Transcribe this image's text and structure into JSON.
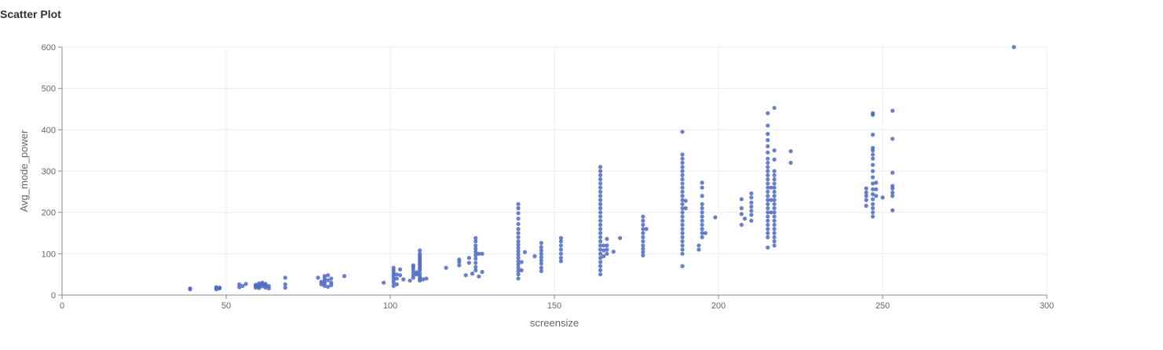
{
  "page": {
    "title": "Scatter Plot"
  },
  "colors": {
    "point": "#4c6ac3",
    "grid": "#ececec",
    "axis": "#888888"
  },
  "chart_data": {
    "type": "scatter",
    "title": "Scatter Plot",
    "xlabel": "screensize",
    "ylabel": "Avg_mode_power",
    "xlim": [
      0,
      300
    ],
    "ylim": [
      0,
      600
    ],
    "xticks": [
      0,
      50,
      100,
      150,
      200,
      250,
      300
    ],
    "yticks": [
      0,
      100,
      200,
      300,
      400,
      500,
      600
    ],
    "grid": true,
    "points": [
      [
        39,
        14
      ],
      [
        39,
        16
      ],
      [
        47,
        14
      ],
      [
        47,
        17
      ],
      [
        47,
        19
      ],
      [
        48,
        16
      ],
      [
        48,
        18
      ],
      [
        54,
        19
      ],
      [
        54,
        26
      ],
      [
        55,
        22
      ],
      [
        56,
        27
      ],
      [
        59,
        18
      ],
      [
        59,
        22
      ],
      [
        59,
        25
      ],
      [
        60,
        17
      ],
      [
        60,
        20
      ],
      [
        60,
        24
      ],
      [
        60,
        28
      ],
      [
        61,
        21
      ],
      [
        61,
        26
      ],
      [
        61,
        30
      ],
      [
        62,
        18
      ],
      [
        62,
        24
      ],
      [
        62,
        27
      ],
      [
        63,
        16
      ],
      [
        63,
        22
      ],
      [
        68,
        18
      ],
      [
        68,
        26
      ],
      [
        68,
        42
      ],
      [
        78,
        42
      ],
      [
        79,
        26
      ],
      [
        79,
        32
      ],
      [
        80,
        22
      ],
      [
        80,
        28
      ],
      [
        80,
        34
      ],
      [
        80,
        40
      ],
      [
        80,
        46
      ],
      [
        81,
        20
      ],
      [
        81,
        36
      ],
      [
        81,
        48
      ],
      [
        82,
        24
      ],
      [
        82,
        30
      ],
      [
        82,
        40
      ],
      [
        86,
        46
      ],
      [
        98,
        30
      ],
      [
        101,
        22
      ],
      [
        101,
        30
      ],
      [
        101,
        36
      ],
      [
        101,
        42
      ],
      [
        101,
        48
      ],
      [
        101,
        54
      ],
      [
        101,
        60
      ],
      [
        101,
        66
      ],
      [
        102,
        26
      ],
      [
        102,
        40
      ],
      [
        102,
        50
      ],
      [
        103,
        62
      ],
      [
        103,
        48
      ],
      [
        104,
        38
      ],
      [
        106,
        35
      ],
      [
        107,
        42
      ],
      [
        107,
        48
      ],
      [
        107,
        55
      ],
      [
        107,
        62
      ],
      [
        107,
        68
      ],
      [
        107,
        72
      ],
      [
        108,
        50
      ],
      [
        108,
        55
      ],
      [
        109,
        35
      ],
      [
        109,
        40
      ],
      [
        109,
        45
      ],
      [
        109,
        52
      ],
      [
        109,
        60
      ],
      [
        109,
        65
      ],
      [
        109,
        70
      ],
      [
        109,
        75
      ],
      [
        109,
        80
      ],
      [
        109,
        85
      ],
      [
        109,
        90
      ],
      [
        109,
        95
      ],
      [
        109,
        100
      ],
      [
        109,
        108
      ],
      [
        110,
        38
      ],
      [
        111,
        40
      ],
      [
        117,
        66
      ],
      [
        121,
        72
      ],
      [
        121,
        80
      ],
      [
        121,
        86
      ],
      [
        123,
        48
      ],
      [
        124,
        78
      ],
      [
        124,
        90
      ],
      [
        125,
        52
      ],
      [
        126,
        60
      ],
      [
        126,
        68
      ],
      [
        126,
        78
      ],
      [
        126,
        88
      ],
      [
        126,
        96
      ],
      [
        126,
        104
      ],
      [
        126,
        112
      ],
      [
        126,
        120
      ],
      [
        126,
        130
      ],
      [
        126,
        138
      ],
      [
        127,
        45
      ],
      [
        127,
        100
      ],
      [
        128,
        56
      ],
      [
        128,
        100
      ],
      [
        139,
        40
      ],
      [
        139,
        50
      ],
      [
        139,
        58
      ],
      [
        139,
        66
      ],
      [
        139,
        74
      ],
      [
        139,
        82
      ],
      [
        139,
        90
      ],
      [
        139,
        98
      ],
      [
        139,
        106
      ],
      [
        139,
        114
      ],
      [
        139,
        122
      ],
      [
        139,
        130
      ],
      [
        139,
        140
      ],
      [
        139,
        150
      ],
      [
        139,
        160
      ],
      [
        139,
        172
      ],
      [
        139,
        185
      ],
      [
        139,
        198
      ],
      [
        139,
        210
      ],
      [
        139,
        220
      ],
      [
        140,
        60
      ],
      [
        140,
        80
      ],
      [
        141,
        104
      ],
      [
        144,
        94
      ],
      [
        146,
        58
      ],
      [
        146,
        66
      ],
      [
        146,
        76
      ],
      [
        146,
        84
      ],
      [
        146,
        92
      ],
      [
        146,
        100
      ],
      [
        146,
        108
      ],
      [
        146,
        116
      ],
      [
        146,
        126
      ],
      [
        152,
        82
      ],
      [
        152,
        90
      ],
      [
        152,
        100
      ],
      [
        152,
        110
      ],
      [
        152,
        120
      ],
      [
        152,
        130
      ],
      [
        152,
        138
      ],
      [
        164,
        50
      ],
      [
        164,
        60
      ],
      [
        164,
        70
      ],
      [
        164,
        80
      ],
      [
        164,
        90
      ],
      [
        164,
        100
      ],
      [
        164,
        110
      ],
      [
        164,
        120
      ],
      [
        164,
        130
      ],
      [
        164,
        140
      ],
      [
        164,
        150
      ],
      [
        164,
        160
      ],
      [
        164,
        170
      ],
      [
        164,
        180
      ],
      [
        164,
        190
      ],
      [
        164,
        200
      ],
      [
        164,
        210
      ],
      [
        164,
        220
      ],
      [
        164,
        230
      ],
      [
        164,
        240
      ],
      [
        164,
        250
      ],
      [
        164,
        260
      ],
      [
        164,
        270
      ],
      [
        164,
        280
      ],
      [
        164,
        290
      ],
      [
        164,
        300
      ],
      [
        164,
        310
      ],
      [
        165,
        94
      ],
      [
        165,
        108
      ],
      [
        165,
        120
      ],
      [
        166,
        100
      ],
      [
        166,
        110
      ],
      [
        166,
        120
      ],
      [
        166,
        136
      ],
      [
        168,
        105
      ],
      [
        170,
        138
      ],
      [
        177,
        96
      ],
      [
        177,
        104
      ],
      [
        177,
        112
      ],
      [
        177,
        120
      ],
      [
        177,
        130
      ],
      [
        177,
        140
      ],
      [
        177,
        150
      ],
      [
        177,
        160
      ],
      [
        177,
        170
      ],
      [
        177,
        180
      ],
      [
        177,
        190
      ],
      [
        178,
        160
      ],
      [
        189,
        70
      ],
      [
        189,
        100
      ],
      [
        189,
        110
      ],
      [
        189,
        120
      ],
      [
        189,
        130
      ],
      [
        189,
        140
      ],
      [
        189,
        150
      ],
      [
        189,
        160
      ],
      [
        189,
        170
      ],
      [
        189,
        180
      ],
      [
        189,
        190
      ],
      [
        189,
        200
      ],
      [
        189,
        210
      ],
      [
        189,
        220
      ],
      [
        189,
        230
      ],
      [
        189,
        240
      ],
      [
        189,
        250
      ],
      [
        189,
        260
      ],
      [
        189,
        270
      ],
      [
        189,
        280
      ],
      [
        189,
        290
      ],
      [
        189,
        300
      ],
      [
        189,
        310
      ],
      [
        189,
        320
      ],
      [
        189,
        330
      ],
      [
        189,
        340
      ],
      [
        189,
        395
      ],
      [
        190,
        210
      ],
      [
        190,
        228
      ],
      [
        194,
        110
      ],
      [
        194,
        120
      ],
      [
        195,
        140
      ],
      [
        195,
        150
      ],
      [
        195,
        160
      ],
      [
        195,
        170
      ],
      [
        195,
        180
      ],
      [
        195,
        190
      ],
      [
        195,
        200
      ],
      [
        195,
        210
      ],
      [
        195,
        220
      ],
      [
        195,
        240
      ],
      [
        195,
        260
      ],
      [
        195,
        272
      ],
      [
        196,
        150
      ],
      [
        199,
        188
      ],
      [
        207,
        170
      ],
      [
        207,
        196
      ],
      [
        207,
        210
      ],
      [
        207,
        232
      ],
      [
        208,
        185
      ],
      [
        210,
        180
      ],
      [
        210,
        194
      ],
      [
        210,
        204
      ],
      [
        210,
        214
      ],
      [
        210,
        224
      ],
      [
        210,
        236
      ],
      [
        210,
        246
      ],
      [
        215,
        115
      ],
      [
        215,
        140
      ],
      [
        215,
        150
      ],
      [
        215,
        160
      ],
      [
        215,
        170
      ],
      [
        215,
        180
      ],
      [
        215,
        190
      ],
      [
        215,
        200
      ],
      [
        215,
        210
      ],
      [
        215,
        220
      ],
      [
        215,
        230
      ],
      [
        215,
        240
      ],
      [
        215,
        250
      ],
      [
        215,
        260
      ],
      [
        215,
        270
      ],
      [
        215,
        280
      ],
      [
        215,
        290
      ],
      [
        215,
        300
      ],
      [
        215,
        310
      ],
      [
        215,
        320
      ],
      [
        215,
        330
      ],
      [
        215,
        345
      ],
      [
        215,
        360
      ],
      [
        215,
        375
      ],
      [
        215,
        390
      ],
      [
        215,
        410
      ],
      [
        215,
        440
      ],
      [
        216,
        200
      ],
      [
        216,
        230
      ],
      [
        216,
        260
      ],
      [
        217,
        120
      ],
      [
        217,
        130
      ],
      [
        217,
        140
      ],
      [
        217,
        150
      ],
      [
        217,
        160
      ],
      [
        217,
        170
      ],
      [
        217,
        180
      ],
      [
        217,
        190
      ],
      [
        217,
        200
      ],
      [
        217,
        210
      ],
      [
        217,
        220
      ],
      [
        217,
        230
      ],
      [
        217,
        240
      ],
      [
        217,
        250
      ],
      [
        217,
        260
      ],
      [
        217,
        270
      ],
      [
        217,
        280
      ],
      [
        217,
        290
      ],
      [
        217,
        300
      ],
      [
        217,
        328
      ],
      [
        217,
        350
      ],
      [
        217,
        453
      ],
      [
        222,
        320
      ],
      [
        222,
        348
      ],
      [
        245,
        216
      ],
      [
        245,
        230
      ],
      [
        245,
        240
      ],
      [
        245,
        248
      ],
      [
        245,
        258
      ],
      [
        247,
        190
      ],
      [
        247,
        200
      ],
      [
        247,
        210
      ],
      [
        247,
        220
      ],
      [
        247,
        232
      ],
      [
        247,
        244
      ],
      [
        247,
        256
      ],
      [
        247,
        270
      ],
      [
        247,
        285
      ],
      [
        247,
        300
      ],
      [
        247,
        315
      ],
      [
        247,
        330
      ],
      [
        247,
        340
      ],
      [
        247,
        350
      ],
      [
        247,
        356
      ],
      [
        247,
        388
      ],
      [
        247,
        436
      ],
      [
        247,
        440
      ],
      [
        248,
        240
      ],
      [
        248,
        256
      ],
      [
        248,
        272
      ],
      [
        250,
        236
      ],
      [
        253,
        205
      ],
      [
        253,
        240
      ],
      [
        253,
        248
      ],
      [
        253,
        258
      ],
      [
        253,
        264
      ],
      [
        253,
        296
      ],
      [
        253,
        378
      ],
      [
        253,
        446
      ],
      [
        290,
        600
      ]
    ]
  }
}
